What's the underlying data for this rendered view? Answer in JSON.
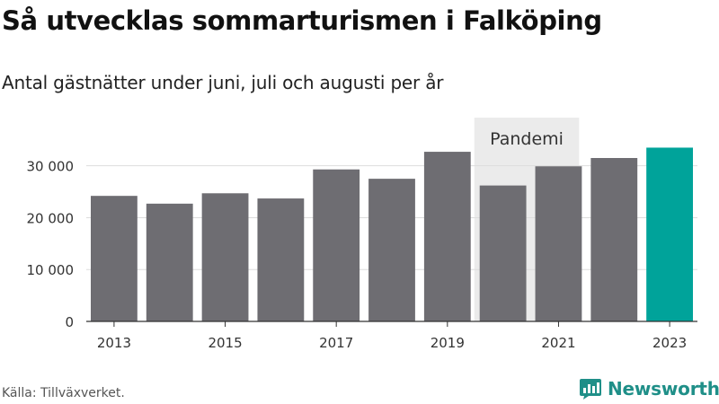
{
  "header": {
    "title": "Så utvecklas sommarturismen i Falköping",
    "subtitle": "Antal gästnätter under juni, juli och augusti per år"
  },
  "footer": {
    "source": "Källa: Tillväxverket.",
    "brand": "Newsworthy"
  },
  "colors": {
    "bar": "#6e6d72",
    "highlight": "#00a39a",
    "annotation_bg": "#ebebeb",
    "grid": "#dddddd",
    "brand": "#1f8f88"
  },
  "chart_data": {
    "type": "bar",
    "title": "Så utvecklas sommarturismen i Falköping",
    "subtitle": "Antal gästnätter under juni, juli och augusti per år",
    "categories": [
      "2013",
      "2014",
      "2015",
      "2016",
      "2017",
      "2018",
      "2019",
      "2020",
      "2021",
      "2022",
      "2023"
    ],
    "values": [
      24200,
      22700,
      24700,
      23700,
      29300,
      27500,
      32700,
      26200,
      29900,
      31500,
      33500
    ],
    "highlight_category": "2023",
    "x_tick_labels": [
      "2013",
      "2015",
      "2017",
      "2019",
      "2021",
      "2023"
    ],
    "y_ticks": [
      0,
      10000,
      20000,
      30000
    ],
    "y_tick_labels": [
      "0",
      "10 000",
      "20 000",
      "30 000"
    ],
    "ylim": [
      0,
      36000
    ],
    "xlabel": "",
    "ylabel": "",
    "grid": true,
    "annotations": [
      {
        "text": "Pandemi",
        "from": "2020",
        "to": "2021"
      }
    ],
    "source": "Källa: Tillväxverket."
  }
}
